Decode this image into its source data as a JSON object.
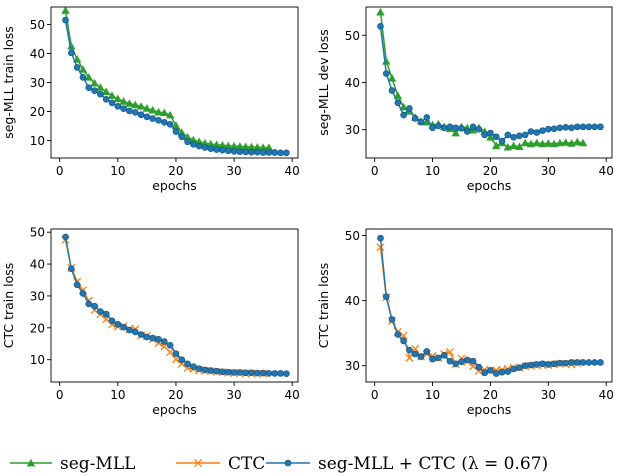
{
  "colors": {
    "seg_mll": "#2ca02c",
    "ctc": "#ff7f0e",
    "combined": "#1f77b4"
  },
  "legend": {
    "seg_mll": "seg-MLL",
    "ctc": "CTC",
    "combined": "seg-MLL + CTC (λ = 0.67)"
  },
  "chart_data": [
    {
      "type": "line",
      "xlabel": "epochs",
      "ylabel": "seg-MLL train loss",
      "xlim": [
        -1.5,
        41
      ],
      "ylim": [
        4,
        56
      ],
      "xticks": [
        0,
        10,
        20,
        30,
        40
      ],
      "yticks": [
        10,
        20,
        30,
        40,
        50
      ],
      "series": [
        {
          "key": "seg_mll",
          "name": "seg-MLL",
          "marker": "triangle",
          "x": [
            1,
            2,
            3,
            4,
            5,
            6,
            7,
            8,
            9,
            10,
            11,
            12,
            13,
            14,
            15,
            16,
            17,
            18,
            19,
            20,
            21,
            22,
            23,
            24,
            25,
            26,
            27,
            28,
            29,
            30,
            31,
            32,
            33,
            34,
            35,
            36
          ],
          "y": [
            54.8,
            42.5,
            38,
            34.5,
            31.8,
            29.8,
            28.3,
            26.8,
            25.5,
            24.4,
            23.5,
            22.8,
            22.3,
            21.8,
            21.1,
            20.5,
            19.8,
            19.6,
            18.8,
            15.2,
            12.8,
            11.2,
            10.2,
            9.6,
            9.1,
            8.8,
            8.6,
            8.4,
            8.2,
            8.1,
            8.0,
            7.9,
            7.8,
            7.7,
            7.6,
            7.6
          ]
        },
        {
          "key": "combined",
          "name": "seg-MLL + CTC (λ = 0.67)",
          "marker": "circle",
          "x": [
            1,
            2,
            3,
            4,
            5,
            6,
            7,
            8,
            9,
            10,
            11,
            12,
            13,
            14,
            15,
            16,
            17,
            18,
            19,
            20,
            21,
            22,
            23,
            24,
            25,
            26,
            27,
            28,
            29,
            30,
            31,
            32,
            33,
            34,
            35,
            36,
            37,
            38,
            39
          ],
          "y": [
            51.5,
            40.2,
            35.2,
            31.8,
            28.2,
            27.2,
            26,
            24.2,
            23,
            21.8,
            21,
            20.2,
            19.7,
            18.9,
            18.2,
            17.6,
            17,
            16.3,
            15.6,
            13.1,
            11.3,
            9.6,
            8.7,
            8.1,
            7.6,
            7.2,
            6.9,
            6.7,
            6.5,
            6.3,
            6.2,
            6.1,
            6.0,
            6.0,
            5.9,
            5.9,
            5.9,
            5.8,
            5.8
          ]
        }
      ]
    },
    {
      "type": "line",
      "xlabel": "epochs",
      "ylabel": "seg-MLL dev loss",
      "xlim": [
        -1.5,
        41
      ],
      "ylim": [
        24,
        56
      ],
      "xticks": [
        0,
        10,
        20,
        30,
        40
      ],
      "yticks": [
        30,
        40,
        50
      ],
      "series": [
        {
          "key": "seg_mll",
          "name": "seg-MLL",
          "marker": "triangle",
          "x": [
            1,
            2,
            3,
            4,
            5,
            6,
            7,
            8,
            9,
            10,
            11,
            12,
            13,
            14,
            15,
            16,
            17,
            18,
            19,
            20,
            21,
            22,
            23,
            24,
            25,
            26,
            27,
            28,
            29,
            30,
            31,
            32,
            33,
            34,
            35,
            36
          ],
          "y": [
            54.9,
            44.5,
            40.9,
            37.2,
            34.8,
            33.9,
            32.6,
            31.8,
            31.6,
            31,
            31.2,
            30.6,
            30.2,
            29.3,
            30.6,
            30.4,
            29.9,
            30.4,
            29.6,
            28.4,
            26.6,
            27.2,
            26.3,
            26.6,
            26.4,
            27.2,
            27,
            27.2,
            27,
            27.1,
            27,
            27.2,
            27.3,
            27.1,
            27.4,
            27.2
          ]
        },
        {
          "key": "combined",
          "name": "seg-MLL + CTC (λ = 0.67)",
          "marker": "circle",
          "x": [
            1,
            2,
            3,
            4,
            5,
            6,
            7,
            8,
            9,
            10,
            11,
            12,
            13,
            14,
            15,
            16,
            17,
            18,
            19,
            20,
            21,
            22,
            23,
            24,
            25,
            26,
            27,
            28,
            29,
            30,
            31,
            32,
            33,
            34,
            35,
            36,
            37,
            38,
            39
          ],
          "y": [
            51.9,
            41.9,
            38.3,
            35.7,
            33.1,
            34.5,
            32.4,
            31.6,
            32.6,
            30.4,
            30.8,
            30.4,
            30.6,
            30.4,
            30.3,
            29.6,
            30.6,
            30.1,
            28.9,
            29.3,
            28.5,
            27.6,
            28.9,
            28.4,
            28.7,
            28.9,
            29.6,
            29.4,
            29.8,
            30.1,
            30.2,
            30.4,
            30.5,
            30.4,
            30.6,
            30.6,
            30.6,
            30.6,
            30.6
          ]
        }
      ]
    },
    {
      "type": "line",
      "xlabel": "epochs",
      "ylabel": "CTC train loss",
      "xlim": [
        -1.5,
        41
      ],
      "ylim": [
        3,
        51
      ],
      "xticks": [
        0,
        10,
        20,
        30,
        40
      ],
      "yticks": [
        10,
        20,
        30,
        40,
        50
      ],
      "series": [
        {
          "key": "ctc",
          "name": "CTC",
          "marker": "x",
          "x": [
            1,
            2,
            3,
            4,
            5,
            6,
            7,
            8,
            9,
            10,
            11,
            12,
            13,
            14,
            15,
            16,
            17,
            18,
            19,
            20,
            21,
            22,
            23,
            24,
            25,
            26,
            27,
            28,
            29,
            30,
            31,
            32,
            33,
            34,
            35
          ],
          "y": [
            47.6,
            38.8,
            34.5,
            31.8,
            28.5,
            25.6,
            24.2,
            22.7,
            21,
            20.4,
            20.5,
            19.6,
            19.6,
            17.6,
            17.4,
            16.4,
            15.2,
            14.1,
            12.4,
            10.1,
            8.7,
            7.4,
            7.1,
            6.7,
            6.5,
            6.4,
            6.2,
            6.1,
            5.9,
            5.8,
            5.8,
            5.7,
            5.7,
            5.6,
            5.6
          ]
        },
        {
          "key": "combined",
          "name": "seg-MLL + CTC (λ = 0.67)",
          "marker": "circle",
          "x": [
            1,
            2,
            3,
            4,
            5,
            6,
            7,
            8,
            9,
            10,
            11,
            12,
            13,
            14,
            15,
            16,
            17,
            18,
            19,
            20,
            21,
            22,
            23,
            24,
            25,
            26,
            27,
            28,
            29,
            30,
            31,
            32,
            33,
            34,
            35,
            36,
            37,
            38,
            39
          ],
          "y": [
            48.5,
            38.5,
            33.5,
            30.8,
            27.5,
            26.8,
            25.1,
            24.3,
            22.2,
            21.1,
            20.2,
            19.3,
            18.7,
            17.9,
            17.1,
            16.8,
            16.4,
            15.7,
            14.5,
            11.9,
            10,
            8.7,
            7.8,
            7.2,
            6.8,
            6.6,
            6.4,
            6.2,
            6.1,
            6.0,
            6.0,
            5.9,
            5.9,
            5.8,
            5.8,
            5.7,
            5.7,
            5.7,
            5.6
          ]
        }
      ]
    },
    {
      "type": "line",
      "xlabel": "epochs",
      "ylabel": "CTC train loss",
      "xlim": [
        -1.5,
        41
      ],
      "ylim": [
        27.5,
        51
      ],
      "xticks": [
        0,
        10,
        20,
        30,
        40
      ],
      "yticks": [
        30,
        40,
        50
      ],
      "series": [
        {
          "key": "ctc",
          "name": "CTC",
          "marker": "x",
          "x": [
            1,
            2,
            3,
            4,
            5,
            6,
            7,
            8,
            9,
            10,
            11,
            12,
            13,
            14,
            15,
            16,
            17,
            18,
            19,
            20,
            21,
            22,
            23,
            24,
            25,
            26,
            27,
            28,
            29,
            30,
            31,
            32,
            33,
            34,
            35
          ],
          "y": [
            48.2,
            40.5,
            36.9,
            35.2,
            34.6,
            31.2,
            32.6,
            31.4,
            31.8,
            31.5,
            31.2,
            31.8,
            32.1,
            30.2,
            31.1,
            30.6,
            29.9,
            29.2,
            29.4,
            29.3,
            29.3,
            29.4,
            29.5,
            29.7,
            29.7,
            29.9,
            30,
            30.1,
            30.1,
            30.1,
            30.2,
            30.3,
            30.3,
            30.2,
            30.4
          ]
        },
        {
          "key": "combined",
          "name": "seg-MLL + CTC (λ = 0.67)",
          "marker": "circle",
          "x": [
            1,
            2,
            3,
            4,
            5,
            6,
            7,
            8,
            9,
            10,
            11,
            12,
            13,
            14,
            15,
            16,
            17,
            18,
            19,
            20,
            21,
            22,
            23,
            24,
            25,
            26,
            27,
            28,
            29,
            30,
            31,
            32,
            33,
            34,
            35,
            36,
            37,
            38,
            39
          ],
          "y": [
            49.6,
            40.6,
            37.1,
            34.8,
            33.8,
            32.4,
            31.8,
            31.4,
            32.2,
            31,
            31.2,
            31.6,
            30.7,
            30.3,
            30.6,
            30.9,
            30.7,
            29.8,
            28.9,
            29.3,
            28.8,
            29,
            29.1,
            29.5,
            29.7,
            30,
            30.1,
            30.2,
            30.3,
            30.2,
            30.3,
            30.4,
            30.4,
            30.5,
            30.5,
            30.5,
            30.5,
            30.5,
            30.5
          ]
        }
      ]
    }
  ]
}
